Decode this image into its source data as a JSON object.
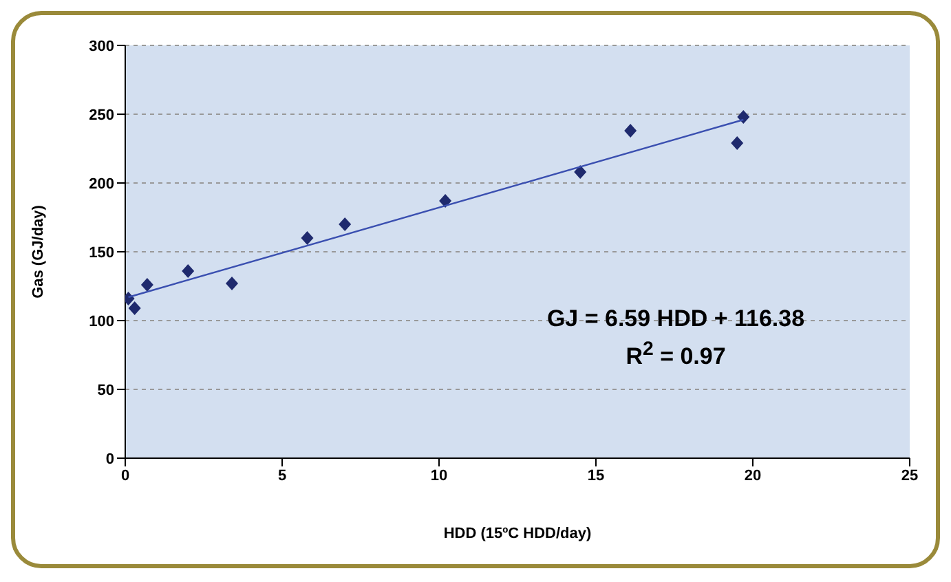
{
  "chart_data": {
    "type": "scatter",
    "xlabel": "HDD (15ºC HDD/day)",
    "ylabel": "Gas (GJ/day)",
    "series": [
      {
        "color": "#1f2a6e",
        "x": [
          0.1,
          0.3,
          0.7,
          2.0,
          3.4,
          5.8,
          7.0,
          10.2,
          14.5,
          16.1,
          19.5,
          19.7
        ],
        "values": [
          116,
          109,
          126,
          136,
          127,
          160,
          170,
          187,
          208,
          238,
          229,
          248
        ],
        "marker": "diamond"
      },
      {
        "type": "line",
        "color": "#3a4fb0",
        "x": [
          0.1,
          19.7
        ],
        "values": [
          117,
          246
        ],
        "marker": "none"
      }
    ],
    "xlim": [
      0,
      25
    ],
    "xticks": [
      0,
      5,
      10,
      15,
      20,
      25
    ],
    "ylim": [
      0,
      300
    ],
    "yticks": [
      0,
      50,
      100,
      150,
      200,
      250,
      300
    ],
    "grid": "y",
    "annotations": [
      {
        "text": "GJ = 6.59 HDD + 116.38"
      },
      {
        "text": "R$^{2}$ = 0.97"
      }
    ]
  }
}
